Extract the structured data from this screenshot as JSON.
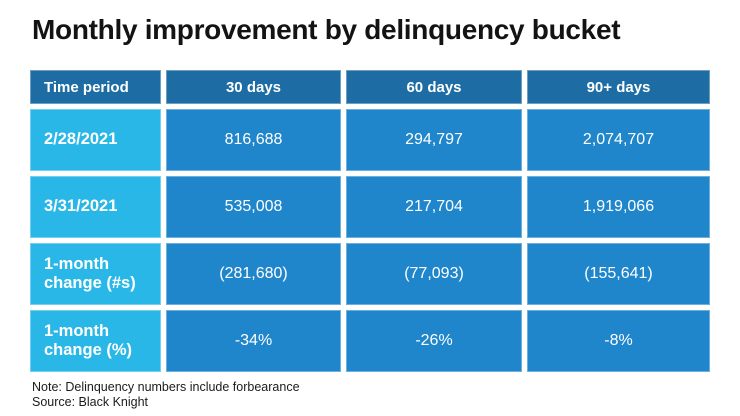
{
  "title": "Monthly improvement by delinquency bucket",
  "chart_data": {
    "type": "table",
    "title": "Monthly improvement by delinquency bucket",
    "columns": [
      "Time period",
      "30 days",
      "60 days",
      "90+ days"
    ],
    "rows": [
      {
        "label": "2/28/2021",
        "values": [
          "816,688",
          "294,797",
          "2,074,707"
        ]
      },
      {
        "label": "3/31/2021",
        "values": [
          "535,008",
          "217,704",
          "1,919,066"
        ]
      },
      {
        "label": "1-month change (#s)",
        "values": [
          "(281,680)",
          "(77,093)",
          "(155,641)"
        ]
      },
      {
        "label": "1-month change (%)",
        "values": [
          "-34%",
          "-26%",
          "-8%"
        ]
      }
    ],
    "numeric_rows": {
      "2/28/2021": [
        816688,
        294797,
        2074707
      ],
      "3/31/2021": [
        535008,
        217704,
        1919066
      ],
      "1-month change (#s)": [
        -281680,
        -77093,
        -155641
      ],
      "1-month change (%)": [
        -34,
        -26,
        -8
      ]
    }
  },
  "footer": {
    "note": "Note: Delinquency numbers include forbearance",
    "source": "Source: Black Knight"
  },
  "colors": {
    "header_bg": "#1d6da4",
    "row_label_bg": "#29b7e8",
    "cell_bg": "#1f86cc",
    "text": "#ffffff",
    "title_text": "#131313"
  }
}
